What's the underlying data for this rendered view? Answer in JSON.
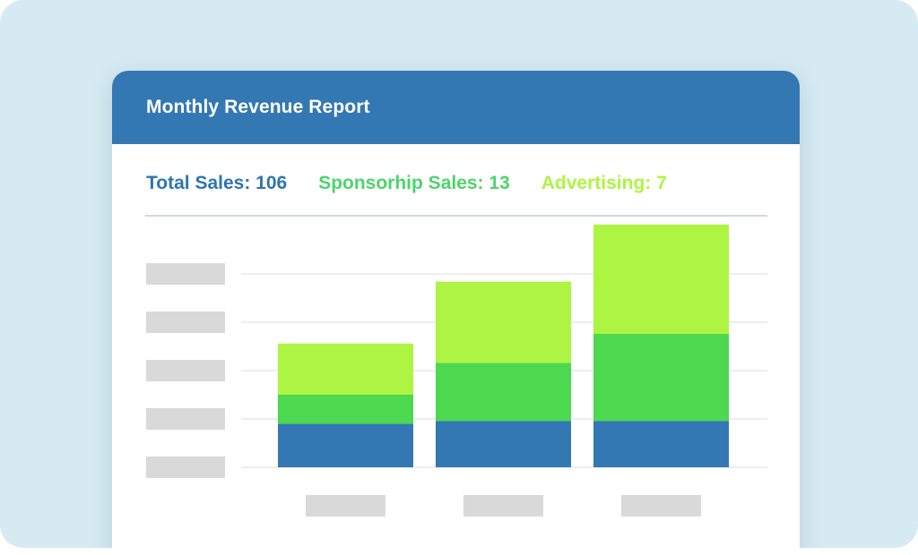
{
  "report": {
    "title": "Monthly Revenue Report",
    "stats": [
      {
        "label": "Total Sales: 106",
        "color": "#2f74b0"
      },
      {
        "label": "Sponsorhip Sales: 13",
        "color": "#4cd46c"
      },
      {
        "label": "Advertising: 7",
        "color": "#adf542"
      }
    ]
  },
  "colors": {
    "background": "#d6eaf1",
    "header": "#3378b3",
    "gridline": "#e6e8ea",
    "placeholder": "#d9d9d9"
  },
  "chart_data": {
    "type": "bar",
    "stacked": true,
    "title": "",
    "xlabel": "",
    "ylabel": "",
    "categories": [
      "",
      "",
      ""
    ],
    "series": [
      {
        "values": [
          4.5,
          4.8,
          4.8
        ],
        "color": "#3378b3"
      },
      {
        "values": [
          3.0,
          6.0,
          9.0
        ],
        "color": "#4cd84f"
      },
      {
        "values": [
          5.3,
          8.4,
          11.3
        ],
        "color": "#adf542"
      }
    ],
    "ylim": [
      0,
      25
    ],
    "grid": true,
    "ytick_labels": [
      "",
      "",
      "",
      "",
      ""
    ],
    "legend": "none"
  }
}
